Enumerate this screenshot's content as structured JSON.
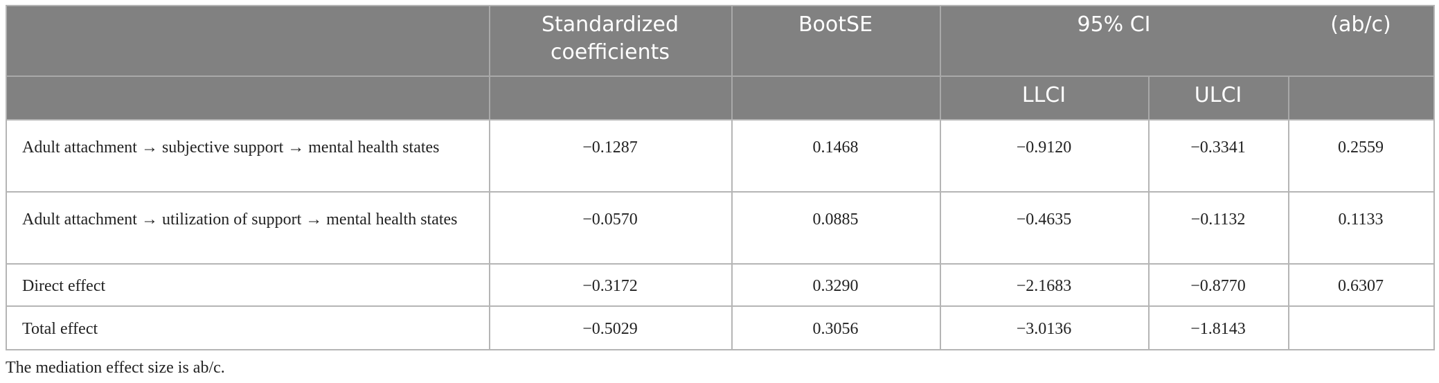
{
  "table": {
    "header": [
      [
        "Standardized coefficients",
        "BootSE",
        "95% CI",
        "(ab/c)"
      ],
      [
        "LLCI",
        "ULCI"
      ]
    ],
    "rows": [
      [
        "Adult attachment → subjective support → mental health states",
        "−0.1287",
        "0.1468",
        "−0.9120",
        "−0.3341",
        "0.2559"
      ],
      [
        "Adult attachment → utilization of support → mental health states",
        "−0.0570",
        "0.0885",
        "−0.4635",
        "−0.1132",
        "0.1133"
      ],
      [
        "Direct effect",
        "−0.3172",
        "0.3290",
        "−2.1683",
        "−0.8770",
        "0.6307"
      ],
      [
        "Total effect",
        "−0.5029",
        "0.3056",
        "−3.0136",
        "−1.8143",
        null
      ]
    ],
    "note": "The mediation effect size is ab/c."
  }
}
